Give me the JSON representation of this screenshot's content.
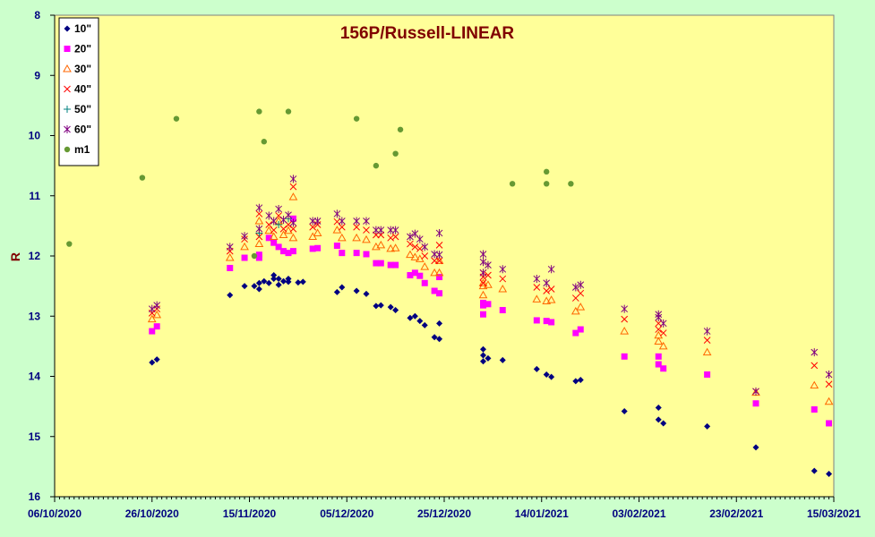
{
  "chart_data": {
    "type": "scatter",
    "title": "156P/Russell-LINEAR",
    "xlabel": "",
    "ylabel": "R",
    "x_type": "date",
    "xlim": [
      "2020-10-06",
      "2021-03-15"
    ],
    "x_ticks": [
      "06/10/2020",
      "26/10/2020",
      "15/11/2020",
      "05/12/2020",
      "25/12/2020",
      "14/01/2021",
      "03/02/2021",
      "23/02/2021",
      "15/03/2021"
    ],
    "x_tick_dates": [
      "2020-10-06",
      "2020-10-26",
      "2020-11-15",
      "2020-12-05",
      "2020-12-25",
      "2021-01-14",
      "2021-02-03",
      "2021-02-23",
      "2021-03-15"
    ],
    "ylim": [
      8,
      16
    ],
    "y_inverted": true,
    "y_ticks": [
      "8",
      "9",
      "10",
      "11",
      "12",
      "13",
      "14",
      "15",
      "16"
    ],
    "legend_position": "top-left",
    "series": [
      {
        "name": "10\"",
        "marker": "diamond",
        "color": "#000080",
        "points": [
          [
            "2020-10-26",
            13.77
          ],
          [
            "2020-10-27",
            13.72
          ],
          [
            "2020-11-11",
            12.65
          ],
          [
            "2020-11-14",
            12.5
          ],
          [
            "2020-11-16",
            12.5
          ],
          [
            "2020-11-17",
            12.45
          ],
          [
            "2020-11-17",
            12.55
          ],
          [
            "2020-11-18",
            12.42
          ],
          [
            "2020-11-19",
            12.45
          ],
          [
            "2020-11-20",
            12.32
          ],
          [
            "2020-11-20",
            12.38
          ],
          [
            "2020-11-21",
            12.48
          ],
          [
            "2020-11-21",
            12.38
          ],
          [
            "2020-11-22",
            12.42
          ],
          [
            "2020-11-23",
            12.38
          ],
          [
            "2020-11-23",
            12.43
          ],
          [
            "2020-11-25",
            12.44
          ],
          [
            "2020-11-26",
            12.43
          ],
          [
            "2020-12-03",
            12.6
          ],
          [
            "2020-12-04",
            12.52
          ],
          [
            "2020-12-07",
            12.58
          ],
          [
            "2020-12-09",
            12.63
          ],
          [
            "2020-12-11",
            12.83
          ],
          [
            "2020-12-12",
            12.82
          ],
          [
            "2020-12-14",
            12.85
          ],
          [
            "2020-12-15",
            12.9
          ],
          [
            "2020-12-18",
            13.03
          ],
          [
            "2020-12-19",
            13.0
          ],
          [
            "2020-12-20",
            13.08
          ],
          [
            "2020-12-21",
            13.15
          ],
          [
            "2020-12-23",
            13.35
          ],
          [
            "2020-12-24",
            13.38
          ],
          [
            "2020-12-24",
            13.12
          ],
          [
            "2021-01-02",
            13.55
          ],
          [
            "2021-01-02",
            13.65
          ],
          [
            "2021-01-02",
            13.75
          ],
          [
            "2021-01-03",
            13.7
          ],
          [
            "2021-01-06",
            13.73
          ],
          [
            "2021-01-13",
            13.88
          ],
          [
            "2021-01-15",
            13.97
          ],
          [
            "2021-01-16",
            14.01
          ],
          [
            "2021-01-21",
            14.08
          ],
          [
            "2021-01-22",
            14.06
          ],
          [
            "2021-01-31",
            14.58
          ],
          [
            "2021-02-07",
            14.52
          ],
          [
            "2021-02-07",
            14.72
          ],
          [
            "2021-02-08",
            14.78
          ],
          [
            "2021-02-17",
            14.83
          ],
          [
            "2021-02-27",
            15.18
          ],
          [
            "2021-03-11",
            15.57
          ],
          [
            "2021-03-14",
            15.62
          ]
        ]
      },
      {
        "name": "20\"",
        "marker": "square",
        "color": "#ff00ff",
        "points": [
          [
            "2020-10-26",
            13.25
          ],
          [
            "2020-10-27",
            13.17
          ],
          [
            "2020-11-11",
            12.2
          ],
          [
            "2020-11-14",
            12.03
          ],
          [
            "2020-11-17",
            11.98
          ],
          [
            "2020-11-17",
            12.03
          ],
          [
            "2020-11-19",
            11.7
          ],
          [
            "2020-11-20",
            11.78
          ],
          [
            "2020-11-21",
            11.85
          ],
          [
            "2020-11-22",
            11.92
          ],
          [
            "2020-11-23",
            11.95
          ],
          [
            "2020-11-24",
            11.92
          ],
          [
            "2020-11-24",
            11.38
          ],
          [
            "2020-11-28",
            11.88
          ],
          [
            "2020-11-29",
            11.87
          ],
          [
            "2020-12-03",
            11.83
          ],
          [
            "2020-12-04",
            11.95
          ],
          [
            "2020-12-07",
            11.95
          ],
          [
            "2020-12-09",
            11.97
          ],
          [
            "2020-12-11",
            12.12
          ],
          [
            "2020-12-12",
            12.12
          ],
          [
            "2020-12-14",
            12.15
          ],
          [
            "2020-12-15",
            12.15
          ],
          [
            "2020-12-18",
            12.32
          ],
          [
            "2020-12-19",
            12.28
          ],
          [
            "2020-12-20",
            12.33
          ],
          [
            "2020-12-21",
            12.45
          ],
          [
            "2020-12-23",
            12.58
          ],
          [
            "2020-12-24",
            12.62
          ],
          [
            "2020-12-24",
            12.35
          ],
          [
            "2021-01-02",
            12.78
          ],
          [
            "2021-01-02",
            12.82
          ],
          [
            "2021-01-02",
            12.97
          ],
          [
            "2021-01-03",
            12.8
          ],
          [
            "2021-01-06",
            12.9
          ],
          [
            "2021-01-13",
            13.07
          ],
          [
            "2021-01-15",
            13.08
          ],
          [
            "2021-01-16",
            13.1
          ],
          [
            "2021-01-21",
            13.28
          ],
          [
            "2021-01-22",
            13.22
          ],
          [
            "2021-01-31",
            13.67
          ],
          [
            "2021-02-07",
            13.67
          ],
          [
            "2021-02-07",
            13.8
          ],
          [
            "2021-02-08",
            13.87
          ],
          [
            "2021-02-17",
            13.97
          ],
          [
            "2021-02-27",
            14.45
          ],
          [
            "2021-03-11",
            14.55
          ],
          [
            "2021-03-14",
            14.78
          ]
        ]
      },
      {
        "name": "30\"",
        "marker": "triangle",
        "color": "#ff6600",
        "points": [
          [
            "2020-10-26",
            13.05
          ],
          [
            "2020-10-27",
            12.98
          ],
          [
            "2020-11-11",
            12.03
          ],
          [
            "2020-11-14",
            11.85
          ],
          [
            "2020-11-17",
            11.8
          ],
          [
            "2020-11-17",
            11.42
          ],
          [
            "2020-11-19",
            11.58
          ],
          [
            "2020-11-20",
            11.68
          ],
          [
            "2020-11-21",
            11.42
          ],
          [
            "2020-11-22",
            11.65
          ],
          [
            "2020-11-23",
            11.58
          ],
          [
            "2020-11-24",
            11.7
          ],
          [
            "2020-11-24",
            11.02
          ],
          [
            "2020-11-28",
            11.68
          ],
          [
            "2020-11-29",
            11.62
          ],
          [
            "2020-12-03",
            11.57
          ],
          [
            "2020-12-04",
            11.7
          ],
          [
            "2020-12-07",
            11.7
          ],
          [
            "2020-12-09",
            11.73
          ],
          [
            "2020-12-11",
            11.85
          ],
          [
            "2020-12-12",
            11.82
          ],
          [
            "2020-12-14",
            11.88
          ],
          [
            "2020-12-15",
            11.87
          ],
          [
            "2020-12-18",
            11.98
          ],
          [
            "2020-12-19",
            12.02
          ],
          [
            "2020-12-20",
            12.05
          ],
          [
            "2020-12-21",
            12.18
          ],
          [
            "2020-12-23",
            12.28
          ],
          [
            "2020-12-24",
            12.28
          ],
          [
            "2020-12-24",
            12.08
          ],
          [
            "2021-01-02",
            12.45
          ],
          [
            "2021-01-02",
            12.5
          ],
          [
            "2021-01-02",
            12.65
          ],
          [
            "2021-01-03",
            12.48
          ],
          [
            "2021-01-06",
            12.55
          ],
          [
            "2021-01-13",
            12.72
          ],
          [
            "2021-01-15",
            12.75
          ],
          [
            "2021-01-16",
            12.73
          ],
          [
            "2021-01-21",
            12.92
          ],
          [
            "2021-01-22",
            12.85
          ],
          [
            "2021-01-31",
            13.25
          ],
          [
            "2021-02-07",
            13.32
          ],
          [
            "2021-02-07",
            13.42
          ],
          [
            "2021-02-08",
            13.5
          ],
          [
            "2021-02-17",
            13.6
          ],
          [
            "2021-02-27",
            14.27
          ],
          [
            "2021-03-11",
            14.15
          ],
          [
            "2021-03-14",
            14.42
          ]
        ]
      },
      {
        "name": "40\"",
        "marker": "x",
        "color": "#ff0000",
        "points": [
          [
            "2020-10-26",
            12.95
          ],
          [
            "2020-10-27",
            12.88
          ],
          [
            "2020-11-11",
            11.92
          ],
          [
            "2020-11-14",
            11.72
          ],
          [
            "2020-11-17",
            11.68
          ],
          [
            "2020-11-17",
            11.3
          ],
          [
            "2020-11-19",
            11.48
          ],
          [
            "2020-11-20",
            11.57
          ],
          [
            "2020-11-21",
            11.33
          ],
          [
            "2020-11-22",
            11.55
          ],
          [
            "2020-11-23",
            11.48
          ],
          [
            "2020-11-24",
            11.55
          ],
          [
            "2020-11-24",
            10.85
          ],
          [
            "2020-11-28",
            11.52
          ],
          [
            "2020-11-29",
            11.48
          ],
          [
            "2020-12-03",
            11.43
          ],
          [
            "2020-12-04",
            11.52
          ],
          [
            "2020-12-07",
            11.52
          ],
          [
            "2020-12-09",
            11.57
          ],
          [
            "2020-12-11",
            11.65
          ],
          [
            "2020-12-12",
            11.65
          ],
          [
            "2020-12-14",
            11.7
          ],
          [
            "2020-12-15",
            11.68
          ],
          [
            "2020-12-18",
            11.8
          ],
          [
            "2020-12-19",
            11.85
          ],
          [
            "2020-12-20",
            11.88
          ],
          [
            "2020-12-21",
            12.0
          ],
          [
            "2020-12-23",
            12.08
          ],
          [
            "2020-12-24",
            12.08
          ],
          [
            "2020-12-24",
            11.82
          ],
          [
            "2021-01-02",
            12.28
          ],
          [
            "2021-01-02",
            12.35
          ],
          [
            "2021-01-02",
            12.45
          ],
          [
            "2021-01-03",
            12.32
          ],
          [
            "2021-01-06",
            12.38
          ],
          [
            "2021-01-13",
            12.52
          ],
          [
            "2021-01-15",
            12.58
          ],
          [
            "2021-01-16",
            12.55
          ],
          [
            "2021-01-21",
            12.7
          ],
          [
            "2021-01-22",
            12.62
          ],
          [
            "2021-01-31",
            13.05
          ],
          [
            "2021-02-07",
            13.12
          ],
          [
            "2021-02-07",
            13.22
          ],
          [
            "2021-02-08",
            13.28
          ],
          [
            "2021-02-17",
            13.4
          ],
          [
            "2021-02-27",
            14.25
          ],
          [
            "2021-03-11",
            13.82
          ],
          [
            "2021-03-14",
            14.13
          ]
        ]
      },
      {
        "name": "50\"",
        "marker": "plus",
        "color": "#008080",
        "points": [
          [
            "2020-11-17",
            11.62
          ],
          [
            "2020-11-21",
            11.48
          ],
          [
            "2020-11-23",
            11.38
          ]
        ]
      },
      {
        "name": "60\"",
        "marker": "star",
        "color": "#800080",
        "points": [
          [
            "2020-10-26",
            12.88
          ],
          [
            "2020-10-27",
            12.82
          ],
          [
            "2020-11-11",
            11.85
          ],
          [
            "2020-11-14",
            11.67
          ],
          [
            "2020-11-17",
            11.55
          ],
          [
            "2020-11-17",
            11.2
          ],
          [
            "2020-11-19",
            11.33
          ],
          [
            "2020-11-20",
            11.42
          ],
          [
            "2020-11-21",
            11.22
          ],
          [
            "2020-11-22",
            11.4
          ],
          [
            "2020-11-23",
            11.32
          ],
          [
            "2020-11-24",
            11.45
          ],
          [
            "2020-11-24",
            10.72
          ],
          [
            "2020-11-28",
            11.42
          ],
          [
            "2020-11-29",
            11.42
          ],
          [
            "2020-12-03",
            11.3
          ],
          [
            "2020-12-04",
            11.42
          ],
          [
            "2020-12-07",
            11.42
          ],
          [
            "2020-12-09",
            11.42
          ],
          [
            "2020-12-11",
            11.57
          ],
          [
            "2020-12-12",
            11.57
          ],
          [
            "2020-12-14",
            11.57
          ],
          [
            "2020-12-15",
            11.57
          ],
          [
            "2020-12-18",
            11.68
          ],
          [
            "2020-12-19",
            11.63
          ],
          [
            "2020-12-20",
            11.72
          ],
          [
            "2020-12-21",
            11.85
          ],
          [
            "2020-12-23",
            11.97
          ],
          [
            "2020-12-24",
            11.98
          ],
          [
            "2020-12-24",
            11.62
          ],
          [
            "2021-01-02",
            11.97
          ],
          [
            "2021-01-02",
            12.1
          ],
          [
            "2021-01-02",
            12.28
          ],
          [
            "2021-01-03",
            12.15
          ],
          [
            "2021-01-06",
            12.22
          ],
          [
            "2021-01-13",
            12.38
          ],
          [
            "2021-01-15",
            12.45
          ],
          [
            "2021-01-16",
            12.22
          ],
          [
            "2021-01-21",
            12.52
          ],
          [
            "2021-01-22",
            12.48
          ],
          [
            "2021-01-31",
            12.88
          ],
          [
            "2021-02-07",
            12.97
          ],
          [
            "2021-02-07",
            13.02
          ],
          [
            "2021-02-08",
            13.12
          ],
          [
            "2021-02-17",
            13.25
          ],
          [
            "2021-02-27",
            14.25
          ],
          [
            "2021-03-11",
            13.6
          ],
          [
            "2021-03-14",
            13.97
          ]
        ]
      },
      {
        "name": "m1",
        "marker": "circle",
        "color": "#669933",
        "points": [
          [
            "2020-10-09",
            11.8
          ],
          [
            "2020-10-24",
            10.7
          ],
          [
            "2020-10-31",
            9.72
          ],
          [
            "2020-11-16",
            12.0
          ],
          [
            "2020-11-17",
            9.6
          ],
          [
            "2020-11-18",
            10.1
          ],
          [
            "2020-11-23",
            9.6
          ],
          [
            "2020-12-07",
            9.72
          ],
          [
            "2020-12-11",
            10.5
          ],
          [
            "2020-12-15",
            10.3
          ],
          [
            "2020-12-16",
            9.9
          ],
          [
            "2021-01-08",
            10.8
          ],
          [
            "2021-01-15",
            10.8
          ],
          [
            "2021-01-15",
            10.6
          ],
          [
            "2021-01-20",
            10.8
          ]
        ]
      }
    ]
  }
}
